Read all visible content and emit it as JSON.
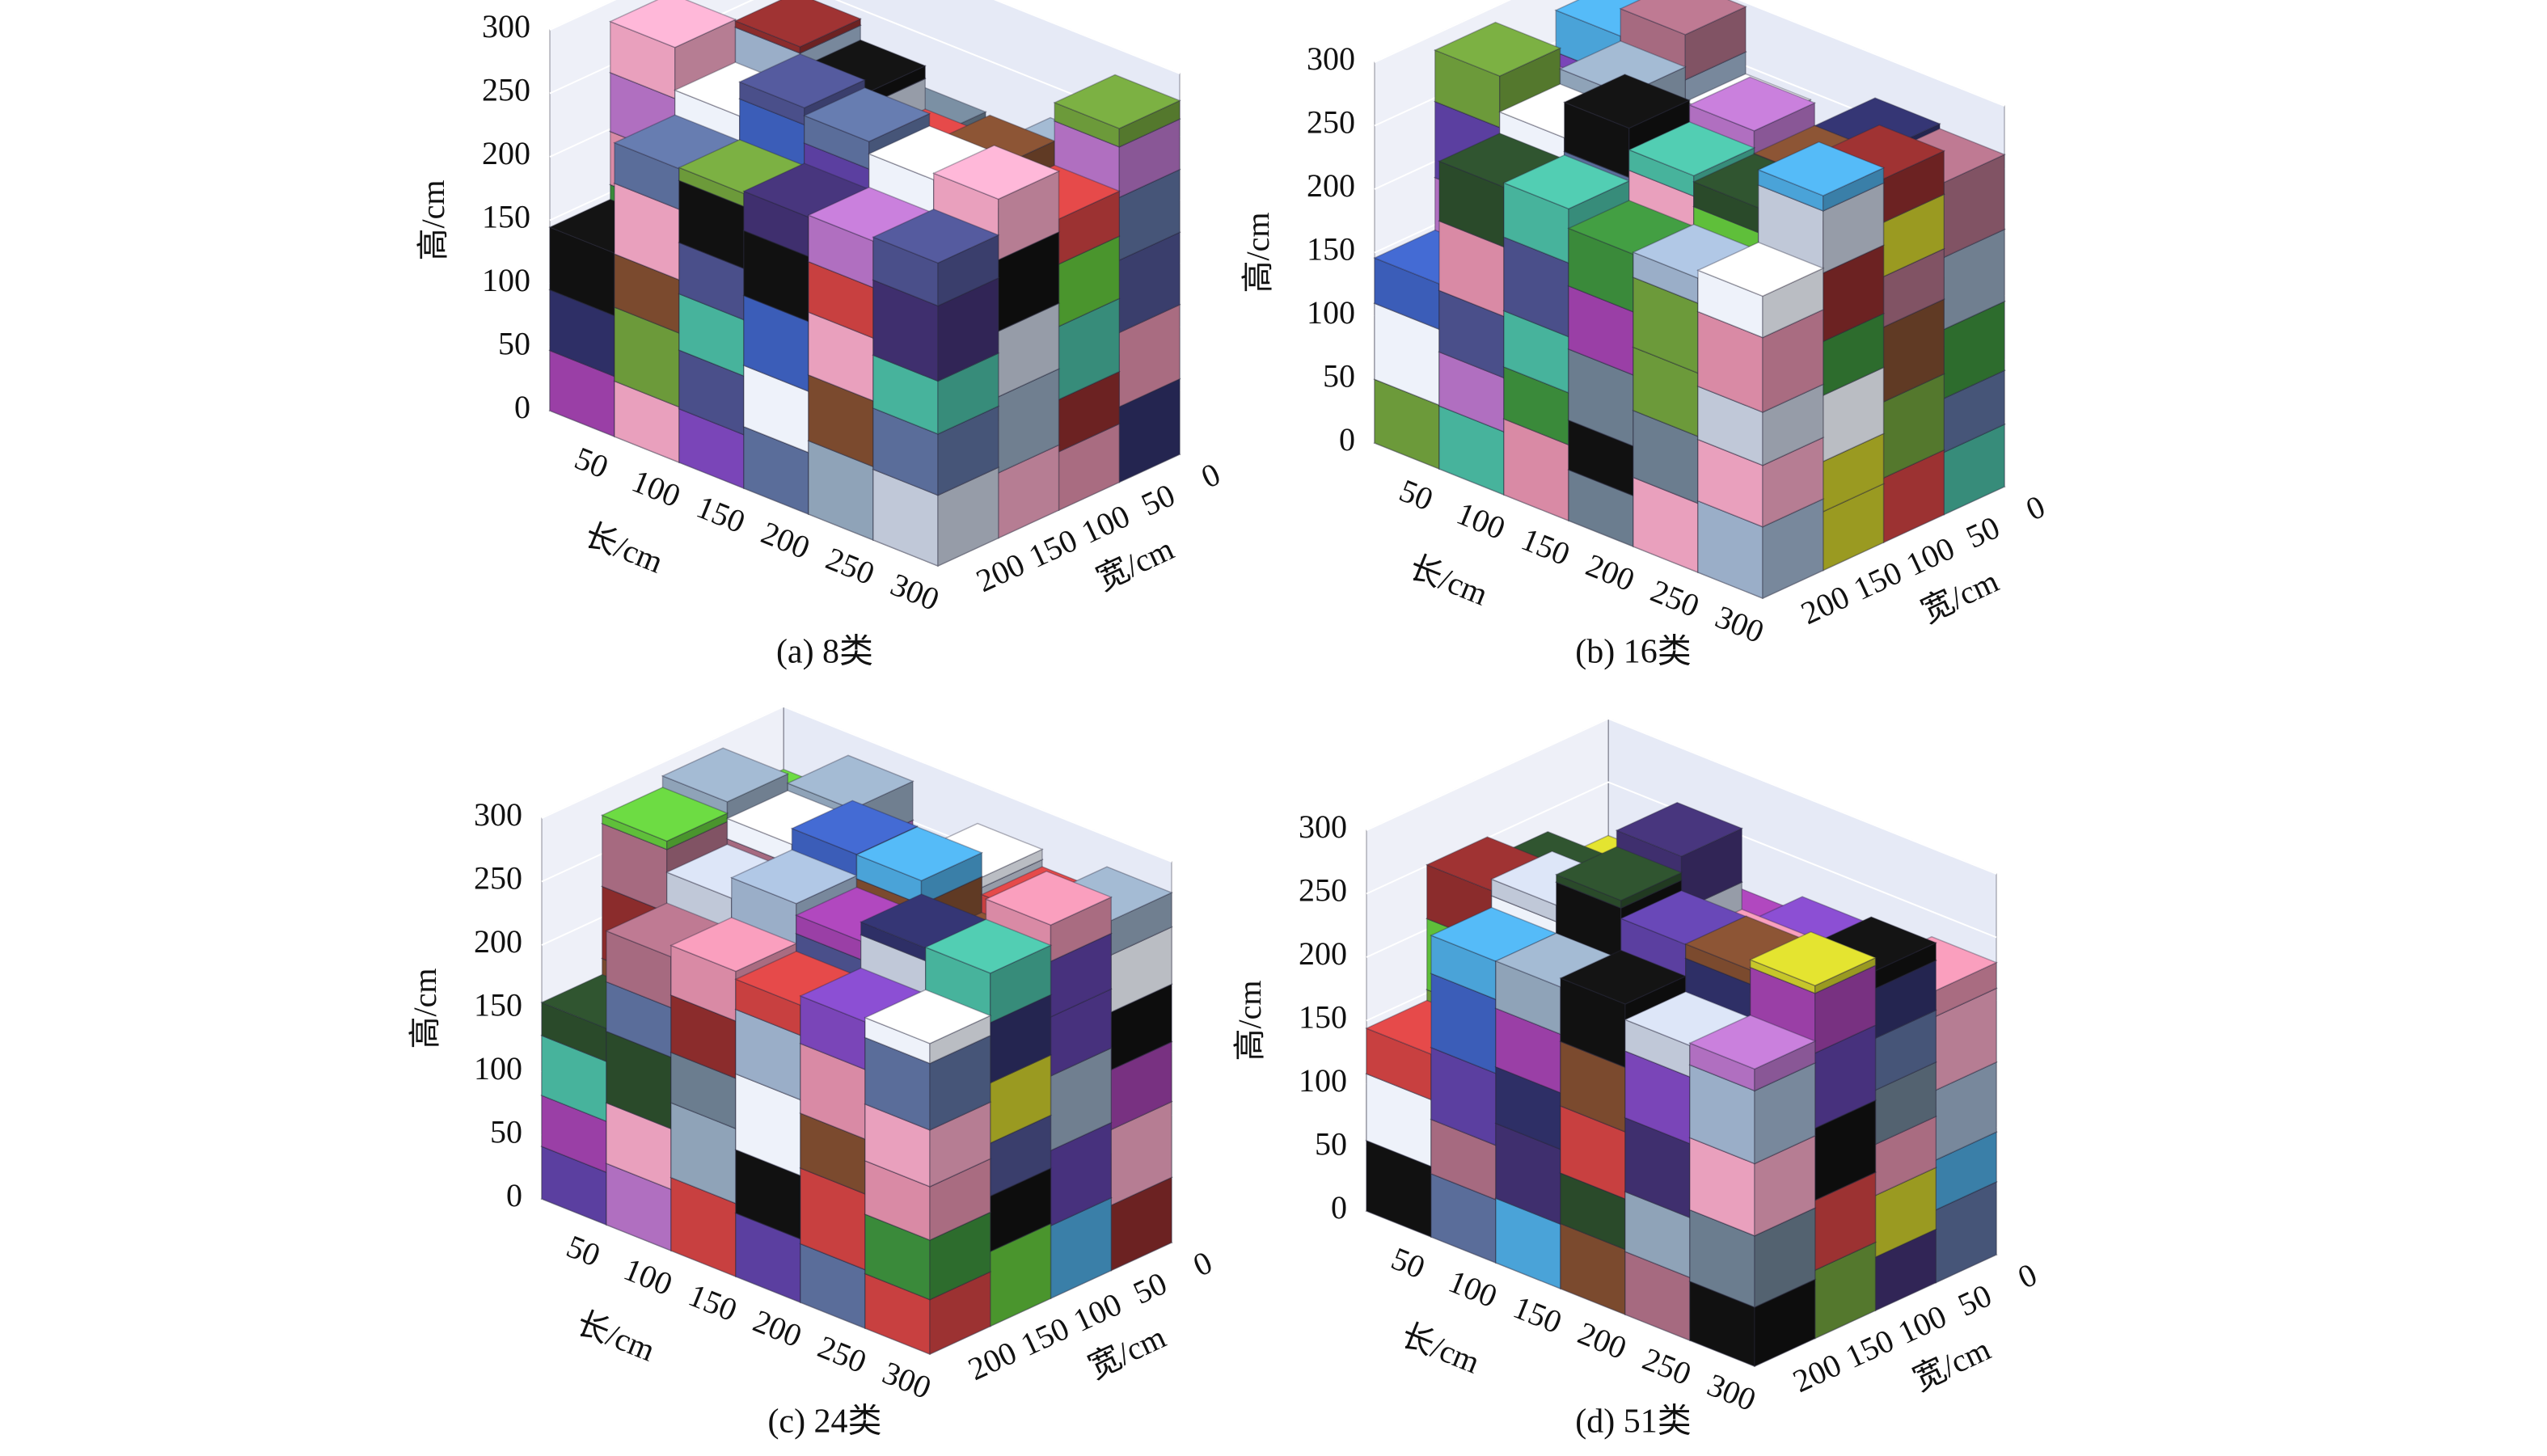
{
  "chart_data": [
    {
      "type": "bar3d",
      "title": "(a) 8类",
      "xlabel": "长/cm",
      "ylabel": "宽/cm",
      "zlabel": "高/cm",
      "xlim": [
        0,
        300
      ],
      "ylim": [
        0,
        230
      ],
      "zlim": [
        0,
        300
      ],
      "xticks": [
        50,
        100,
        150,
        200,
        250,
        300
      ],
      "yticks": [
        0,
        50,
        100,
        150,
        200
      ],
      "zticks": [
        0,
        50,
        100,
        150,
        200,
        250,
        300
      ]
    },
    {
      "type": "bar3d",
      "title": "(b) 16类",
      "xlabel": "长/cm",
      "ylabel": "宽/cm",
      "zlabel": "高/cm",
      "xlim": [
        0,
        300
      ],
      "ylim": [
        0,
        230
      ],
      "zlim": [
        0,
        300
      ],
      "xticks": [
        50,
        100,
        150,
        200,
        250,
        300
      ],
      "yticks": [
        0,
        50,
        100,
        150,
        200
      ],
      "zticks": [
        0,
        50,
        100,
        150,
        200,
        250,
        300
      ]
    },
    {
      "type": "bar3d",
      "title": "(c) 24类",
      "xlabel": "长/cm",
      "ylabel": "宽/cm",
      "zlabel": "高/cm",
      "xlim": [
        0,
        300
      ],
      "ylim": [
        0,
        230
      ],
      "zlim": [
        0,
        300
      ],
      "xticks": [
        50,
        100,
        150,
        200,
        250,
        300
      ],
      "yticks": [
        0,
        50,
        100,
        150,
        200
      ],
      "zticks": [
        0,
        50,
        100,
        150,
        200,
        250,
        300
      ]
    },
    {
      "type": "bar3d",
      "title": "(d) 51类",
      "xlabel": "长/cm",
      "ylabel": "宽/cm",
      "zlabel": "高/cm",
      "xlim": [
        0,
        300
      ],
      "ylim": [
        0,
        230
      ],
      "zlim": [
        0,
        300
      ],
      "xticks": [
        50,
        100,
        150,
        200,
        250,
        300
      ],
      "yticks": [
        0,
        50,
        100,
        150,
        200
      ],
      "zticks": [
        0,
        50,
        100,
        150,
        200,
        250,
        300
      ]
    }
  ]
}
